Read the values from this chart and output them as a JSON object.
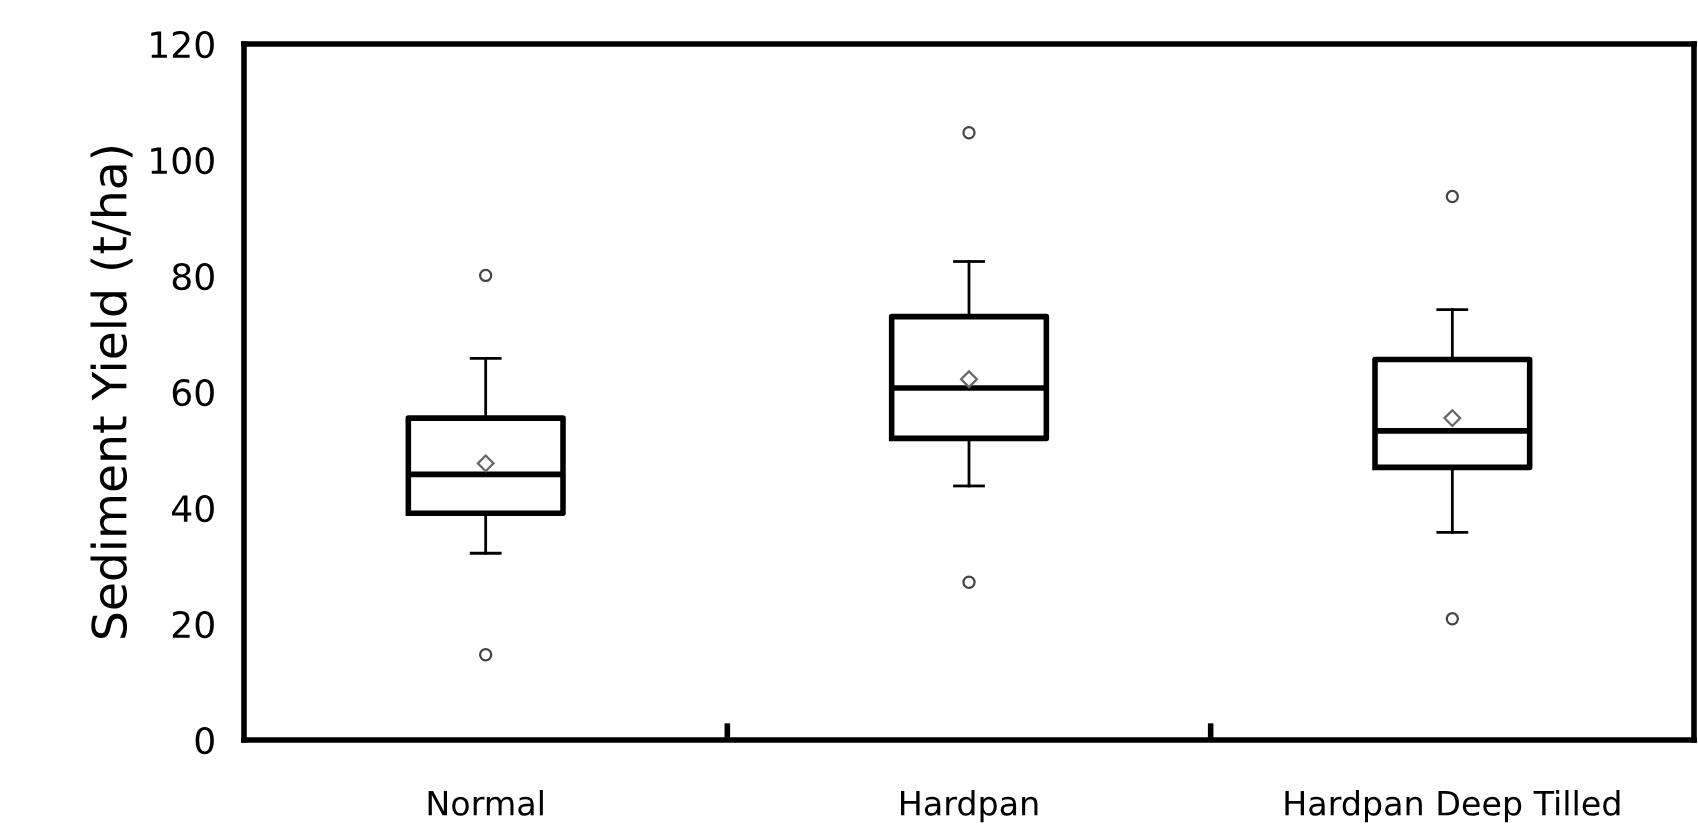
{
  "chart_data": {
    "type": "box",
    "ylabel": "Sediment Yield (t/ha)",
    "categories": [
      "Normal",
      "Hardpan",
      "Hardpan Deep Tilled"
    ],
    "boxes": [
      {
        "low": 32.2,
        "q1": 39.1,
        "median": 45.8,
        "q3": 55.5,
        "high": 65.8,
        "mean": 47.7,
        "outliers": [
          80.1,
          14.7
        ]
      },
      {
        "low": 43.8,
        "q1": 52.0,
        "median": 60.7,
        "q3": 73.0,
        "high": 82.5,
        "mean": 62.2,
        "outliers": [
          104.7,
          27.2
        ]
      },
      {
        "low": 35.8,
        "q1": 47.0,
        "median": 53.3,
        "q3": 65.6,
        "high": 74.2,
        "mean": 55.5,
        "outliers": [
          93.7,
          20.9
        ]
      }
    ],
    "ylim": [
      0,
      120
    ],
    "yticks": [
      0,
      20,
      40,
      60,
      80,
      100,
      120
    ],
    "grid": false,
    "legend": false
  }
}
